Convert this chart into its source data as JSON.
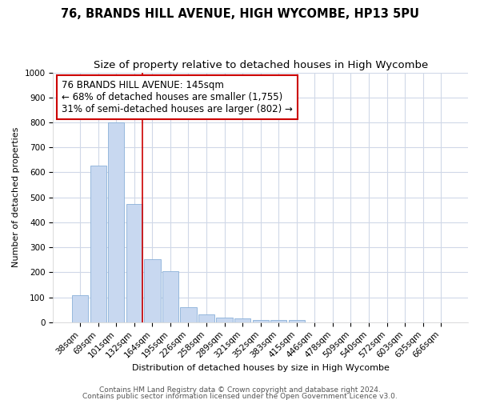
{
  "title1": "76, BRANDS HILL AVENUE, HIGH WYCOMBE, HP13 5PU",
  "title2": "Size of property relative to detached houses in High Wycombe",
  "xlabel": "Distribution of detached houses by size in High Wycombe",
  "ylabel": "Number of detached properties",
  "categories": [
    "38sqm",
    "69sqm",
    "101sqm",
    "132sqm",
    "164sqm",
    "195sqm",
    "226sqm",
    "258sqm",
    "289sqm",
    "321sqm",
    "352sqm",
    "383sqm",
    "415sqm",
    "446sqm",
    "478sqm",
    "509sqm",
    "540sqm",
    "572sqm",
    "603sqm",
    "635sqm",
    "666sqm"
  ],
  "values": [
    110,
    628,
    800,
    475,
    253,
    203,
    62,
    30,
    20,
    14,
    10,
    10,
    10,
    0,
    0,
    0,
    0,
    0,
    0,
    0,
    0
  ],
  "bar_color": "#c8d8f0",
  "bar_edge_color": "#8ab0d8",
  "vline_color": "#cc0000",
  "annotation_text": "76 BRANDS HILL AVENUE: 145sqm\n← 68% of detached houses are smaller (1,755)\n31% of semi-detached houses are larger (802) →",
  "annotation_box_color": "#ffffff",
  "annotation_border_color": "#cc0000",
  "ylim": [
    0,
    1000
  ],
  "yticks": [
    0,
    100,
    200,
    300,
    400,
    500,
    600,
    700,
    800,
    900,
    1000
  ],
  "footer1": "Contains HM Land Registry data © Crown copyright and database right 2024.",
  "footer2": "Contains public sector information licensed under the Open Government Licence v3.0.",
  "bg_color": "#ffffff",
  "plot_bg_color": "#ffffff",
  "grid_color": "#d0d8e8",
  "title1_fontsize": 10.5,
  "title2_fontsize": 9.5,
  "annotation_fontsize": 8.5,
  "axis_label_fontsize": 8,
  "tick_fontsize": 7.5,
  "footer_fontsize": 6.5
}
